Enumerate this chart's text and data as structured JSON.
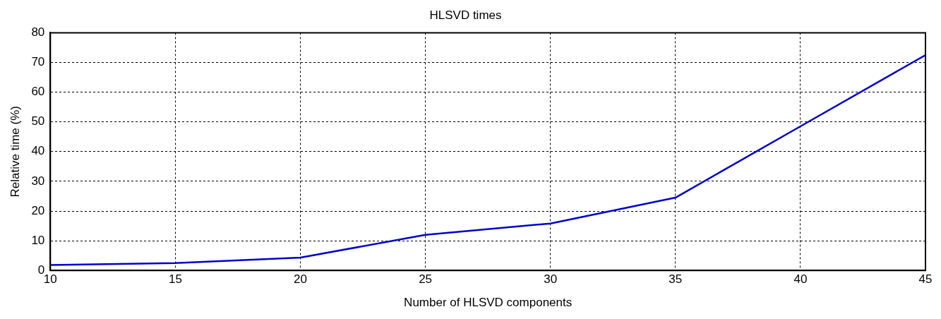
{
  "chart_data": {
    "type": "line",
    "title": "HLSVD times",
    "xlabel": "Number of HLSVD components",
    "ylabel": "Relative time (%)",
    "x": [
      10,
      15,
      20,
      25,
      30,
      35,
      40,
      45
    ],
    "series": [
      {
        "color": "#0000cc",
        "values": [
          1.8,
          2.5,
          4.3,
          12,
          15.8,
          24.5,
          48.5,
          72.5
        ]
      }
    ],
    "xlim": [
      10,
      45
    ],
    "xticks": [
      10,
      15,
      20,
      25,
      30,
      35,
      40,
      45
    ],
    "ylim": [
      0,
      80
    ],
    "yticks": [
      0,
      10,
      20,
      30,
      40,
      50,
      60,
      70,
      80
    ],
    "grid": true,
    "legend": false,
    "marker": "none",
    "line_style": "solid"
  }
}
